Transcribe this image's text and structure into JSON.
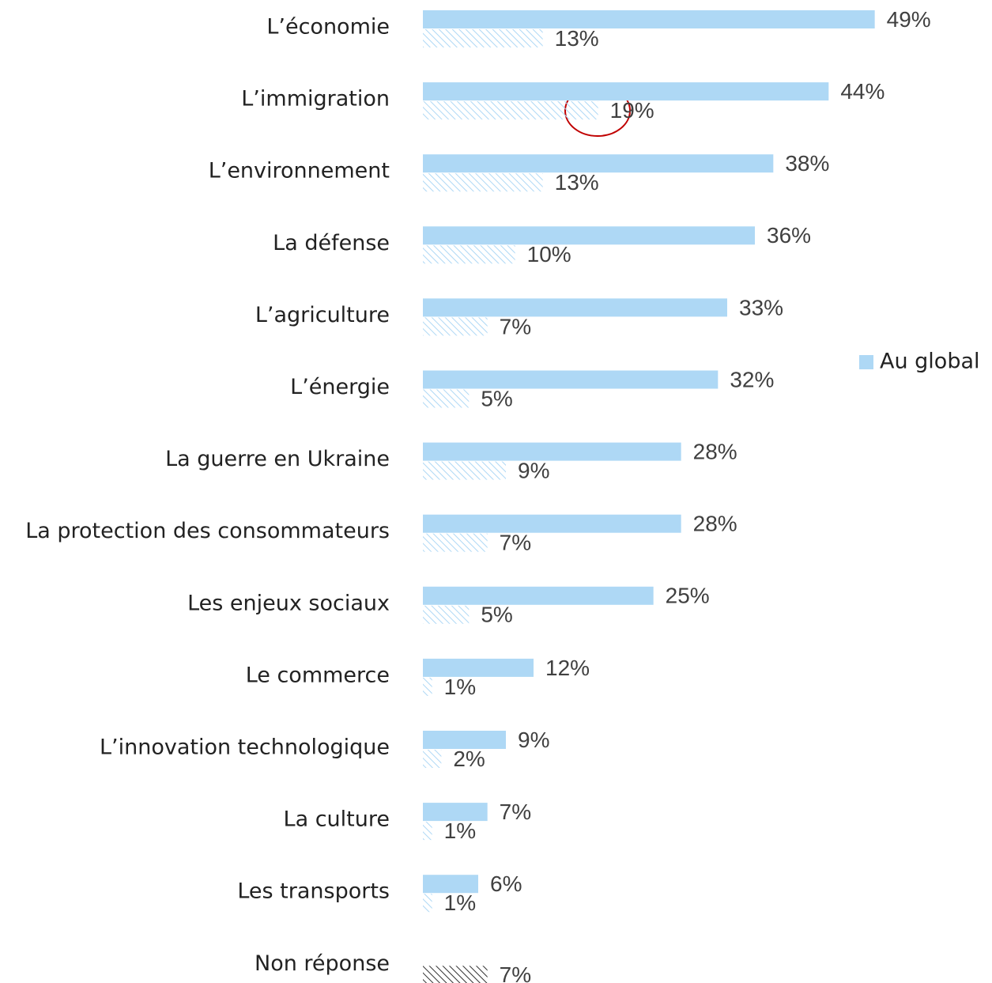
{
  "chart_data": {
    "type": "hbar",
    "categories": [
      "L’économie",
      "L’immigration",
      "L’environnement",
      "La défense",
      "L’agriculture",
      "L’énergie",
      "La guerre en Ukraine",
      "La protection des consommateurs",
      "Les enjeux sociaux",
      "Le commerce",
      "L’innovation technologique",
      "La culture",
      "Les transports",
      "Non réponse"
    ],
    "series": [
      {
        "name": "Au global",
        "color": "#aed8f5",
        "style": "solid",
        "values": [
          49,
          44,
          38,
          36,
          33,
          32,
          28,
          28,
          25,
          12,
          9,
          7,
          6,
          null
        ],
        "value_labels": [
          "49%",
          "44%",
          "38%",
          "36%",
          "33%",
          "32%",
          "28%",
          "28%",
          "25%",
          "12%",
          "9%",
          "7%",
          "6%",
          null
        ]
      },
      {
        "style": "hatched",
        "colors": [
          "#aed8f5",
          "#aed8f5",
          "#aed8f5",
          "#aed8f5",
          "#aed8f5",
          "#aed8f5",
          "#aed8f5",
          "#aed8f5",
          "#aed8f5",
          "#aed8f5",
          "#aed8f5",
          "#aed8f5",
          "#aed8f5",
          "#333333"
        ],
        "values": [
          13,
          19,
          13,
          10,
          7,
          5,
          9,
          7,
          5,
          1,
          2,
          1,
          1,
          7
        ],
        "value_labels": [
          "13%",
          "19%",
          "13%",
          "10%",
          "7%",
          "5%",
          "9%",
          "7%",
          "5%",
          "1%",
          "2%",
          "1%",
          "1%",
          "7%"
        ]
      }
    ],
    "xlim": [
      0,
      60
    ],
    "legend": "right"
  }
}
